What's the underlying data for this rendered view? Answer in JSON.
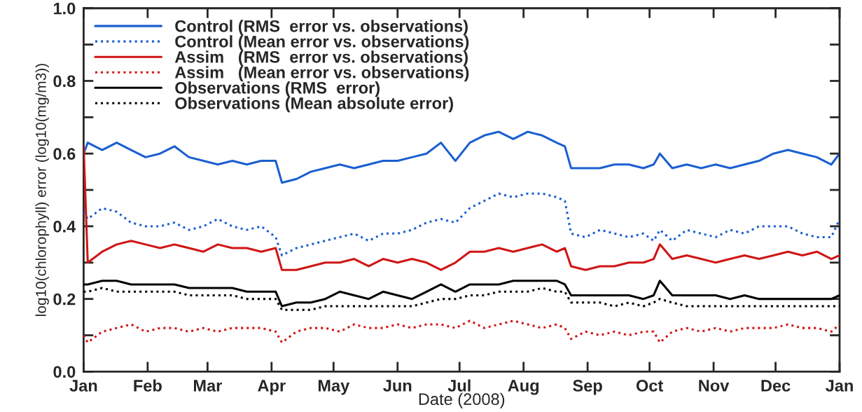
{
  "chart_data": {
    "type": "line",
    "xlabel": "Date (2008)",
    "ylabel": "log10(chlorophyll) error (log10(mg/m3))",
    "x": [
      "2008-01-01",
      "2008-01-03",
      "2008-01-10",
      "2008-01-17",
      "2008-01-24",
      "2008-01-31",
      "2008-02-07",
      "2008-02-14",
      "2008-02-21",
      "2008-02-28",
      "2008-03-06",
      "2008-03-13",
      "2008-03-20",
      "2008-03-27",
      "2008-04-03",
      "2008-04-06",
      "2008-04-13",
      "2008-04-20",
      "2008-04-27",
      "2008-05-04",
      "2008-05-11",
      "2008-05-18",
      "2008-05-25",
      "2008-06-01",
      "2008-06-08",
      "2008-06-15",
      "2008-06-22",
      "2008-06-29",
      "2008-07-06",
      "2008-07-13",
      "2008-07-20",
      "2008-07-27",
      "2008-08-03",
      "2008-08-10",
      "2008-08-17",
      "2008-08-21",
      "2008-08-24",
      "2008-08-31",
      "2008-09-07",
      "2008-09-14",
      "2008-09-21",
      "2008-09-28",
      "2008-10-03",
      "2008-10-06",
      "2008-10-12",
      "2008-10-19",
      "2008-10-26",
      "2008-11-02",
      "2008-11-09",
      "2008-11-16",
      "2008-11-23",
      "2008-11-30",
      "2008-12-07",
      "2008-12-14",
      "2008-12-21",
      "2008-12-28",
      "2009-01-01"
    ],
    "series": [
      {
        "name": "Control (RMS  error vs. observations)",
        "color": "#1a5fd0",
        "line_style": "solid",
        "values": [
          0.6,
          0.63,
          0.61,
          0.63,
          0.61,
          0.59,
          0.6,
          0.62,
          0.59,
          0.58,
          0.57,
          0.58,
          0.57,
          0.58,
          0.58,
          0.52,
          0.53,
          0.55,
          0.56,
          0.57,
          0.56,
          0.57,
          0.58,
          0.58,
          0.59,
          0.6,
          0.63,
          0.58,
          0.63,
          0.65,
          0.66,
          0.64,
          0.66,
          0.65,
          0.63,
          0.62,
          0.56,
          0.56,
          0.56,
          0.57,
          0.57,
          0.56,
          0.57,
          0.6,
          0.56,
          0.57,
          0.56,
          0.57,
          0.56,
          0.57,
          0.58,
          0.6,
          0.61,
          0.6,
          0.59,
          0.57,
          0.6
        ]
      },
      {
        "name": "Control (Mean error vs. observations)",
        "color": "#1a5fd0",
        "line_style": "dotted",
        "values": [
          0.44,
          0.42,
          0.45,
          0.44,
          0.41,
          0.4,
          0.4,
          0.41,
          0.39,
          0.4,
          0.42,
          0.4,
          0.39,
          0.4,
          0.37,
          0.32,
          0.34,
          0.35,
          0.36,
          0.37,
          0.38,
          0.36,
          0.38,
          0.38,
          0.39,
          0.41,
          0.42,
          0.41,
          0.45,
          0.47,
          0.49,
          0.48,
          0.49,
          0.49,
          0.48,
          0.47,
          0.38,
          0.37,
          0.39,
          0.38,
          0.37,
          0.38,
          0.36,
          0.39,
          0.36,
          0.39,
          0.38,
          0.37,
          0.39,
          0.38,
          0.4,
          0.4,
          0.4,
          0.38,
          0.37,
          0.37,
          0.42
        ]
      },
      {
        "name": "Assim   (RMS  error vs. observations)",
        "color": "#d01515",
        "line_style": "solid",
        "values": [
          0.62,
          0.3,
          0.33,
          0.35,
          0.36,
          0.35,
          0.34,
          0.35,
          0.34,
          0.33,
          0.35,
          0.34,
          0.34,
          0.33,
          0.34,
          0.28,
          0.28,
          0.29,
          0.3,
          0.3,
          0.31,
          0.29,
          0.31,
          0.3,
          0.31,
          0.3,
          0.28,
          0.3,
          0.33,
          0.33,
          0.34,
          0.33,
          0.34,
          0.35,
          0.33,
          0.34,
          0.29,
          0.28,
          0.29,
          0.29,
          0.3,
          0.3,
          0.31,
          0.35,
          0.31,
          0.32,
          0.31,
          0.3,
          0.31,
          0.32,
          0.31,
          0.32,
          0.33,
          0.32,
          0.33,
          0.31,
          0.32
        ]
      },
      {
        "name": "Assim   (Mean error vs. observations)",
        "color": "#d01515",
        "line_style": "dotted",
        "values": [
          0.1,
          0.08,
          0.11,
          0.12,
          0.13,
          0.11,
          0.12,
          0.12,
          0.11,
          0.12,
          0.11,
          0.12,
          0.12,
          0.12,
          0.11,
          0.08,
          0.11,
          0.12,
          0.12,
          0.11,
          0.13,
          0.12,
          0.12,
          0.13,
          0.12,
          0.13,
          0.13,
          0.12,
          0.14,
          0.12,
          0.13,
          0.14,
          0.13,
          0.12,
          0.13,
          0.12,
          0.09,
          0.11,
          0.1,
          0.11,
          0.1,
          0.11,
          0.11,
          0.08,
          0.11,
          0.12,
          0.11,
          0.12,
          0.11,
          0.12,
          0.12,
          0.12,
          0.13,
          0.12,
          0.12,
          0.11,
          0.13
        ]
      },
      {
        "name": "Observations (RMS  error)",
        "color": "#000000",
        "line_style": "solid",
        "values": [
          0.24,
          0.24,
          0.25,
          0.25,
          0.24,
          0.24,
          0.24,
          0.24,
          0.23,
          0.23,
          0.23,
          0.23,
          0.22,
          0.22,
          0.22,
          0.18,
          0.19,
          0.19,
          0.2,
          0.22,
          0.21,
          0.2,
          0.22,
          0.21,
          0.2,
          0.22,
          0.24,
          0.22,
          0.24,
          0.24,
          0.24,
          0.25,
          0.25,
          0.25,
          0.25,
          0.24,
          0.21,
          0.21,
          0.21,
          0.21,
          0.21,
          0.2,
          0.21,
          0.25,
          0.21,
          0.21,
          0.21,
          0.21,
          0.2,
          0.21,
          0.2,
          0.2,
          0.2,
          0.2,
          0.2,
          0.2,
          0.21
        ]
      },
      {
        "name": "Observations (Mean absolute error)",
        "color": "#000000",
        "line_style": "dotted",
        "values": [
          0.22,
          0.22,
          0.23,
          0.22,
          0.22,
          0.22,
          0.22,
          0.22,
          0.21,
          0.21,
          0.21,
          0.21,
          0.2,
          0.2,
          0.2,
          0.17,
          0.17,
          0.17,
          0.18,
          0.18,
          0.18,
          0.18,
          0.18,
          0.18,
          0.18,
          0.19,
          0.2,
          0.2,
          0.21,
          0.21,
          0.22,
          0.22,
          0.22,
          0.23,
          0.22,
          0.22,
          0.19,
          0.19,
          0.19,
          0.18,
          0.19,
          0.18,
          0.19,
          0.2,
          0.19,
          0.18,
          0.18,
          0.18,
          0.18,
          0.18,
          0.18,
          0.18,
          0.18,
          0.18,
          0.18,
          0.18,
          0.18
        ]
      }
    ],
    "xlim": [
      "2008-01-01",
      "2009-01-01"
    ],
    "xticks": [
      {
        "value": "2008-01-01",
        "label": "Jan"
      },
      {
        "value": "2008-02-01",
        "label": "Feb"
      },
      {
        "value": "2008-03-01",
        "label": "Mar"
      },
      {
        "value": "2008-04-01",
        "label": "Apr"
      },
      {
        "value": "2008-05-01",
        "label": "May"
      },
      {
        "value": "2008-06-01",
        "label": "Jun"
      },
      {
        "value": "2008-07-01",
        "label": "Jul"
      },
      {
        "value": "2008-08-01",
        "label": "Aug"
      },
      {
        "value": "2008-09-01",
        "label": "Sep"
      },
      {
        "value": "2008-10-01",
        "label": "Oct"
      },
      {
        "value": "2008-11-01",
        "label": "Nov"
      },
      {
        "value": "2008-12-01",
        "label": "Dec"
      },
      {
        "value": "2009-01-01",
        "label": "Jan"
      }
    ],
    "ylim": [
      0.0,
      1.0
    ],
    "yticks": [
      {
        "value": 0.0,
        "label": "0.0"
      },
      {
        "value": 0.1,
        "label": null
      },
      {
        "value": 0.2,
        "label": "0.2"
      },
      {
        "value": 0.3,
        "label": null
      },
      {
        "value": 0.4,
        "label": "0.4"
      },
      {
        "value": 0.5,
        "label": null
      },
      {
        "value": 0.6,
        "label": "0.6"
      },
      {
        "value": 0.7,
        "label": null
      },
      {
        "value": 0.8,
        "label": "0.8"
      },
      {
        "value": 0.9,
        "label": null
      },
      {
        "value": 1.0,
        "label": "1.0"
      }
    ],
    "grid": false,
    "legend": "top left"
  }
}
